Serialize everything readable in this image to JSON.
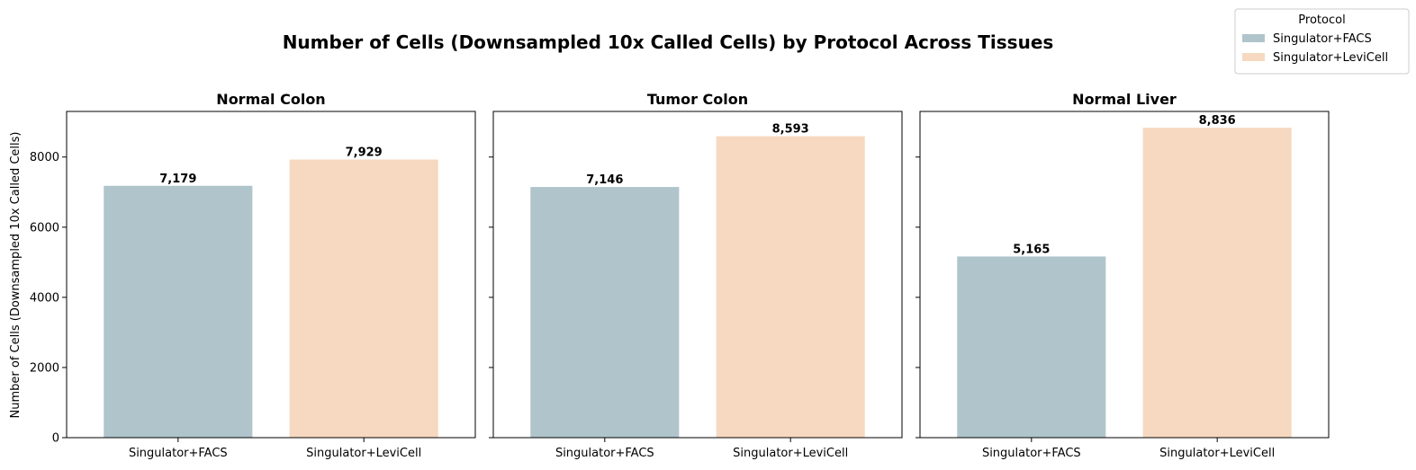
{
  "chart_data": {
    "type": "bar",
    "title": "Number of Cells (Downsampled 10x Called Cells) by Protocol Across Tissues",
    "ylabel": "Number of Cells (Downsampled 10x Called Cells)",
    "ylim": [
      0,
      9300
    ],
    "yticks": [
      0,
      2000,
      4000,
      6000,
      8000
    ],
    "categories": [
      "Singulator+FACS",
      "Singulator+LeviCell"
    ],
    "legend": {
      "title": "Protocol",
      "placement": "top-right",
      "entries": [
        "Singulator+FACS",
        "Singulator+LeviCell"
      ]
    },
    "colors": {
      "Singulator+FACS": "#b0c4cb",
      "Singulator+LeviCell": "#f6d9c0"
    },
    "panels": [
      {
        "title": "Normal Colon",
        "values": [
          7179,
          7929
        ],
        "value_labels": [
          "7,179",
          "7,929"
        ]
      },
      {
        "title": "Tumor Colon",
        "values": [
          7146,
          8593
        ],
        "value_labels": [
          "7,146",
          "8,593"
        ]
      },
      {
        "title": "Normal Liver",
        "values": [
          5165,
          8836
        ],
        "value_labels": [
          "5,165",
          "8,836"
        ]
      }
    ]
  }
}
